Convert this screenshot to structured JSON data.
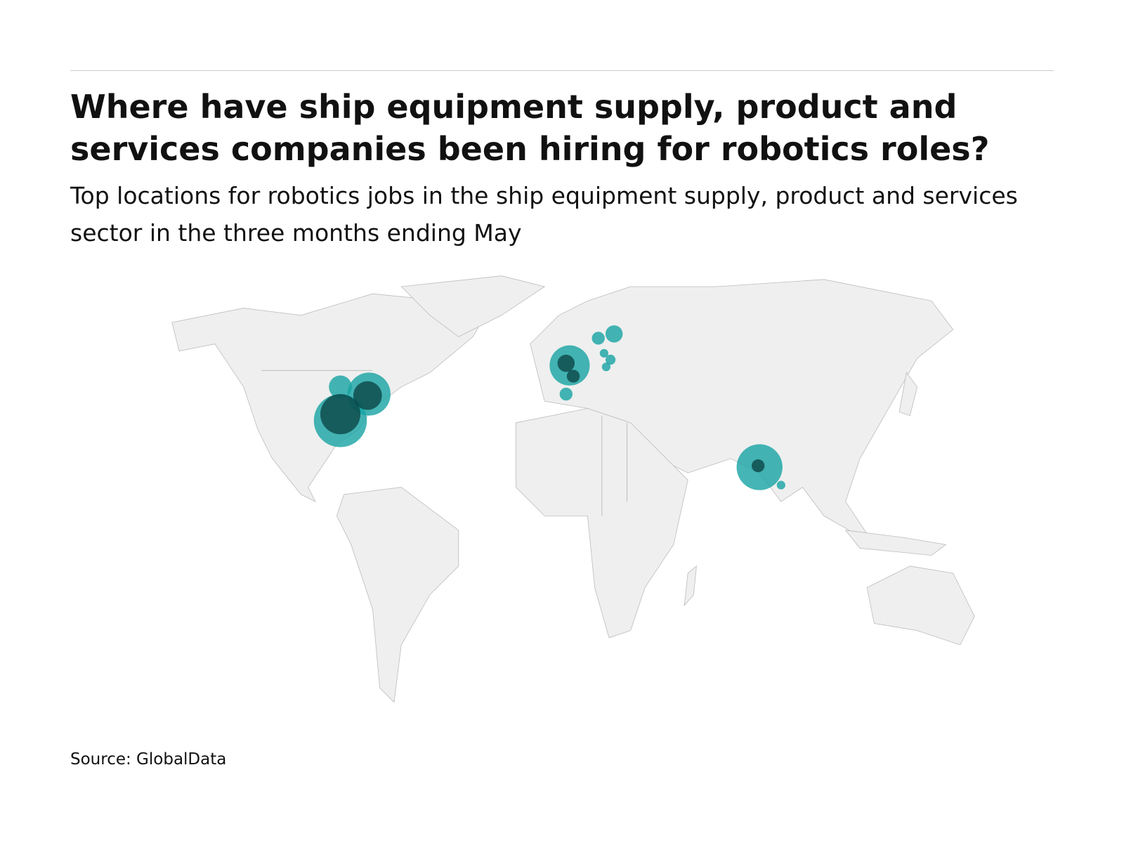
{
  "header": {
    "title": "Where have ship equipment supply, product and services companies been hiring for robotics roles?",
    "subtitle": "Top locations for robotics jobs in the ship equipment supply, product and services sector in the three months ending May"
  },
  "footer": {
    "source": "Source: GlobalData"
  }
}
